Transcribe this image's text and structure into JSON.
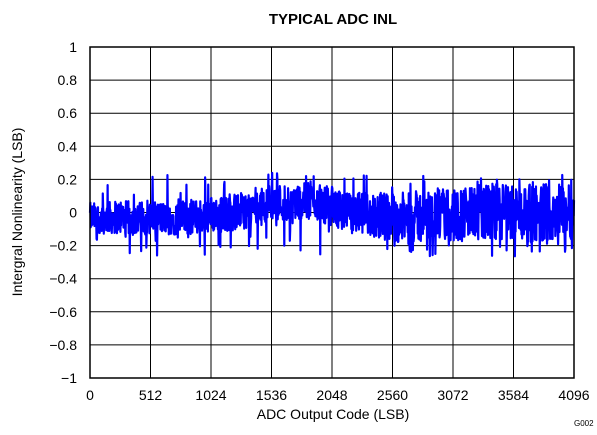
{
  "chart_data": {
    "type": "line",
    "title": "TYPICAL ADC INL",
    "xlabel": "ADC Output Code (LSB)",
    "ylabel": "Intergral Nonlinearity (LSB)",
    "xlim": [
      0,
      4096
    ],
    "ylim": [
      -1,
      1
    ],
    "x_ticks": [
      0,
      512,
      1024,
      1536,
      2048,
      2560,
      3072,
      3584,
      4096
    ],
    "x_tick_labels": [
      "0",
      "512",
      "1024",
      "1536",
      "2048",
      "2560",
      "3072",
      "3584",
      "4096"
    ],
    "y_ticks": [
      -1,
      -0.8,
      -0.6,
      -0.4,
      -0.2,
      0,
      0.2,
      0.4,
      0.6,
      0.8,
      1
    ],
    "y_tick_labels": [
      "−1",
      "−0.8",
      "−0.6",
      "−0.4",
      "−0.2",
      "0",
      "0.2",
      "0.4",
      "0.6",
      "0.8",
      "1"
    ],
    "grid": true,
    "series_color": "#0000ff",
    "series": [
      {
        "x": [
          0,
          128,
          256,
          384,
          512,
          640,
          768,
          896,
          1024,
          1152,
          1280,
          1408,
          1536,
          1664,
          1792,
          1920,
          2048,
          2176,
          2304,
          2432,
          2560,
          2688,
          2816,
          2944,
          3072,
          3200,
          3328,
          3456,
          3584,
          3712,
          3840,
          3968,
          4096
        ],
        "y_upper": [
          0.06,
          0.06,
          0.08,
          0.06,
          0.08,
          0.06,
          0.07,
          0.08,
          0.1,
          0.1,
          0.12,
          0.13,
          0.18,
          0.17,
          0.18,
          0.18,
          0.15,
          0.12,
          0.12,
          0.13,
          0.12,
          0.12,
          0.14,
          0.15,
          0.15,
          0.16,
          0.17,
          0.18,
          0.18,
          0.17,
          0.18,
          0.19,
          0.2
        ],
        "y_lower": [
          -0.12,
          -0.13,
          -0.13,
          -0.14,
          -0.13,
          -0.13,
          -0.14,
          -0.13,
          -0.12,
          -0.12,
          -0.1,
          -0.09,
          -0.05,
          -0.05,
          -0.04,
          -0.05,
          -0.08,
          -0.12,
          -0.14,
          -0.16,
          -0.18,
          -0.18,
          -0.19,
          -0.18,
          -0.18,
          -0.17,
          -0.17,
          -0.18,
          -0.17,
          -0.18,
          -0.17,
          -0.17,
          -0.16
        ],
        "y_peak_max": 0.25,
        "y_peak_min": -0.28
      }
    ]
  },
  "annotation": "G002"
}
